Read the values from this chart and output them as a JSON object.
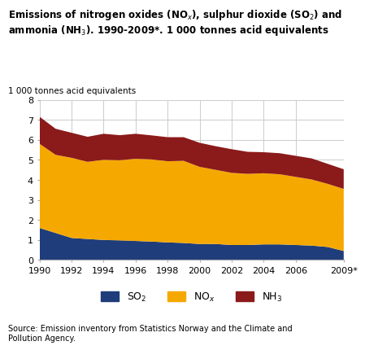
{
  "years": [
    1990,
    1991,
    1992,
    1993,
    1994,
    1995,
    1996,
    1997,
    1998,
    1999,
    2000,
    2001,
    2002,
    2003,
    2004,
    2005,
    2006,
    2007,
    2008,
    2009
  ],
  "SO2": [
    1.6,
    1.35,
    1.1,
    1.05,
    1.0,
    0.98,
    0.95,
    0.92,
    0.88,
    0.85,
    0.8,
    0.8,
    0.75,
    0.75,
    0.78,
    0.78,
    0.75,
    0.72,
    0.65,
    0.45
  ],
  "NOx": [
    4.2,
    3.9,
    4.0,
    3.85,
    4.0,
    4.0,
    4.1,
    4.1,
    4.05,
    4.1,
    3.85,
    3.7,
    3.6,
    3.55,
    3.55,
    3.5,
    3.4,
    3.3,
    3.15,
    3.1
  ],
  "NH3": [
    1.35,
    1.3,
    1.25,
    1.25,
    1.3,
    1.25,
    1.25,
    1.2,
    1.2,
    1.18,
    1.2,
    1.18,
    1.18,
    1.1,
    1.05,
    1.05,
    1.05,
    1.05,
    1.0,
    0.98
  ],
  "SO2_color": "#1f3d7a",
  "NOx_color": "#f5a800",
  "NH3_color": "#8b1a1a",
  "ylabel": "1 000 tonnes acid equivalents",
  "ylim": [
    0,
    8
  ],
  "yticks": [
    0,
    1,
    2,
    3,
    4,
    5,
    6,
    7,
    8
  ],
  "xtick_labels": [
    "1990",
    "1992",
    "1994",
    "1996",
    "1998",
    "2000",
    "2002",
    "2004",
    "2006",
    "2009*"
  ],
  "xtick_positions": [
    1990,
    1992,
    1994,
    1996,
    1998,
    2000,
    2002,
    2004,
    2006,
    2009
  ],
  "source_text": "Source: Emission inventory from Statistics Norway and the Climate and\nPollution Agency.",
  "bg_color": "#ffffff",
  "grid_color": "#cccccc"
}
